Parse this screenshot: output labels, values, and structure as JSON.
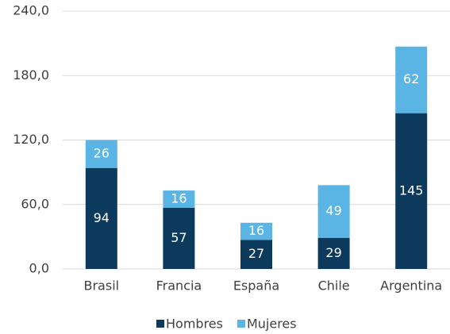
{
  "chart_data": {
    "type": "stacked_bar",
    "categories": [
      "Brasil",
      "Francia",
      "España",
      "Chile",
      "Argentina"
    ],
    "series": [
      {
        "name": "Hombres",
        "color": "#0b3a5c",
        "values": [
          94,
          57,
          27,
          29,
          145
        ]
      },
      {
        "name": "Mujeres",
        "color": "#5ab4e4",
        "values": [
          26,
          16,
          16,
          49,
          62
        ]
      }
    ],
    "ylim": [
      0,
      240
    ],
    "yticks": [
      {
        "value": 0,
        "label": "0,0"
      },
      {
        "value": 60,
        "label": "60,0"
      },
      {
        "value": 120,
        "label": "120,0"
      },
      {
        "value": 180,
        "label": "180,0"
      },
      {
        "value": 240,
        "label": "240,0"
      }
    ],
    "grid": true,
    "legend": "bottom"
  }
}
